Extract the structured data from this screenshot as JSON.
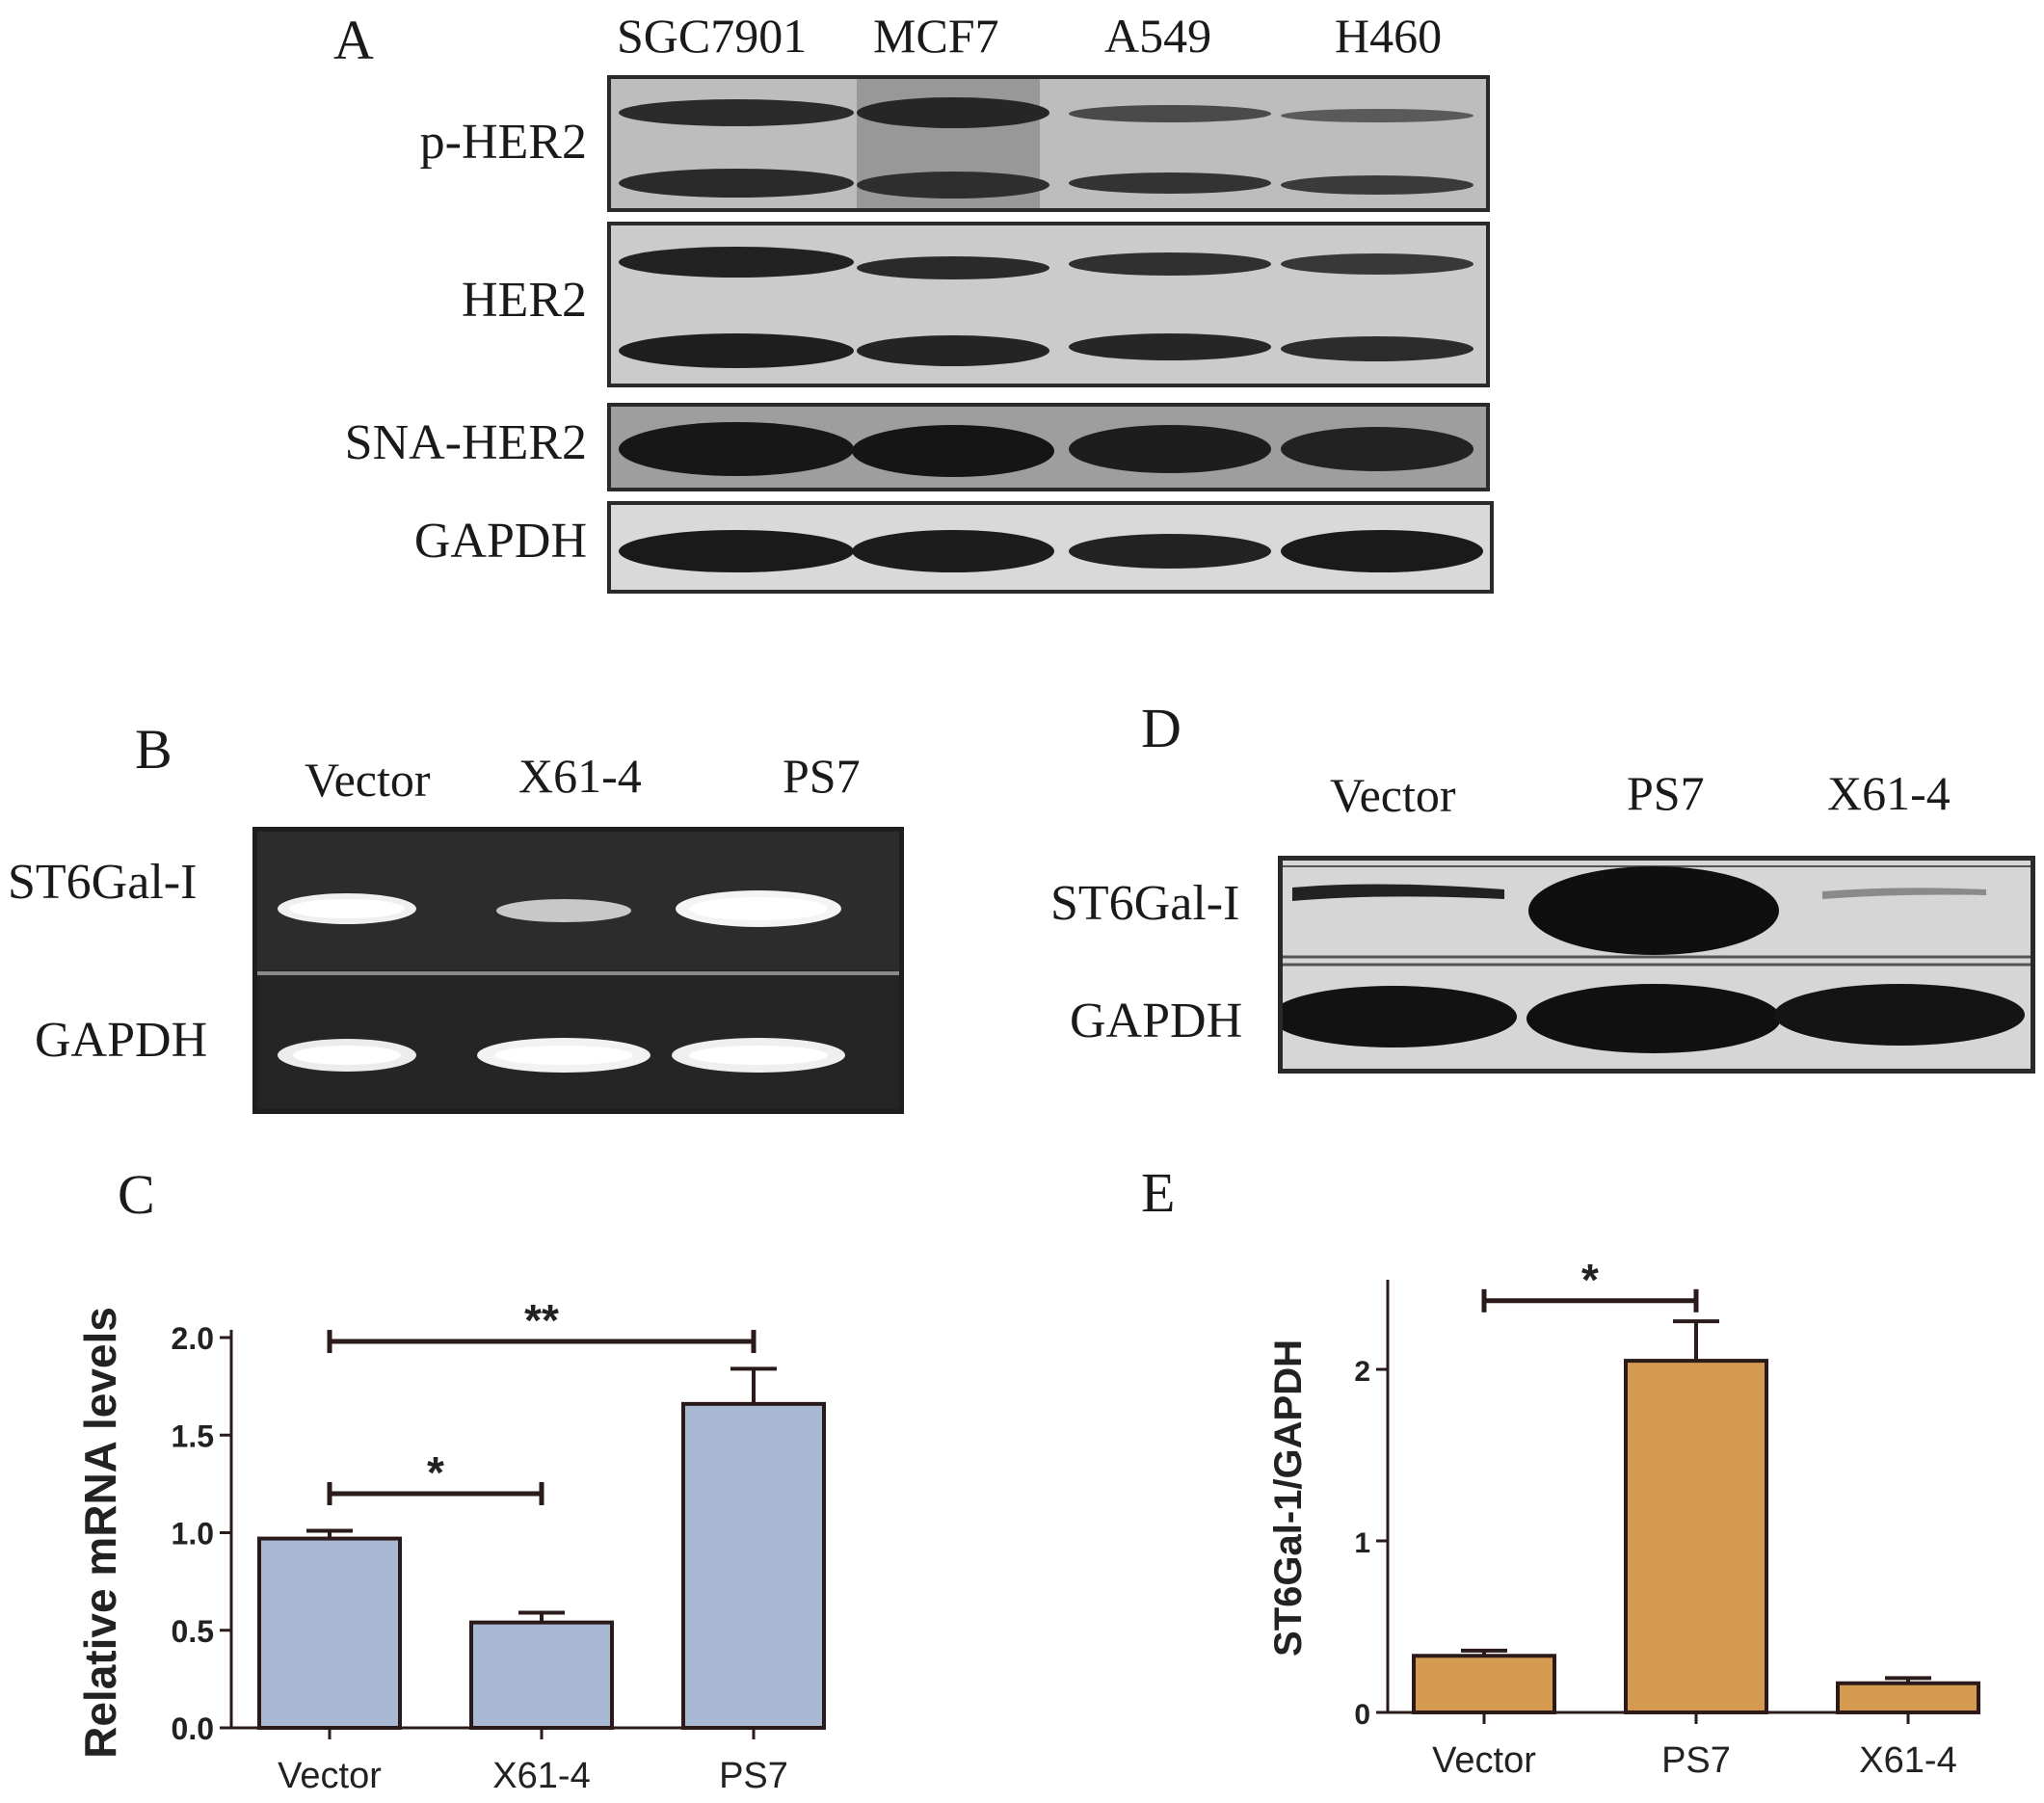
{
  "panel_a": {
    "letter": "A",
    "lanes": [
      "SGC7901",
      "MCF7",
      "A549",
      "H460"
    ],
    "rows": [
      "p-HER2",
      "HER2",
      "SNA-HER2",
      "GAPDH"
    ]
  },
  "panel_b": {
    "letter": "B",
    "lanes": [
      "Vector",
      "X61-4",
      "PS7"
    ],
    "rows": [
      "ST6Gal-I",
      "GAPDH"
    ]
  },
  "panel_c": {
    "letter": "C"
  },
  "panel_d": {
    "letter": "D",
    "lanes": [
      "Vector",
      "PS7",
      "X61-4"
    ],
    "rows": [
      "ST6Gal-I",
      "GAPDH"
    ]
  },
  "panel_e": {
    "letter": "E"
  },
  "colors": {
    "bar_c": "#a9b8d3",
    "bar_e": "#d49a4f",
    "outline": "#2a1a1a"
  },
  "chart_data": [
    {
      "type": "bar",
      "panel": "C",
      "categories": [
        "Vector",
        "X61-4",
        "PS7"
      ],
      "values": [
        0.97,
        0.54,
        1.66
      ],
      "errors": [
        0.04,
        0.05,
        0.18
      ],
      "ylabel": "Relative mRNA levels",
      "ylim": [
        0,
        2.0
      ],
      "yticks": [
        "0.0",
        "0.5",
        "1.0",
        "1.5",
        "2.0"
      ],
      "significance": [
        {
          "from": "Vector",
          "to": "X61-4",
          "label": "*"
        },
        {
          "from": "Vector",
          "to": "PS7",
          "label": "**"
        }
      ]
    },
    {
      "type": "bar",
      "panel": "E",
      "categories": [
        "Vector",
        "PS7",
        "X61-4"
      ],
      "values": [
        0.33,
        2.05,
        0.17
      ],
      "errors": [
        0.03,
        0.23,
        0.03
      ],
      "ylabel": "ST6Gal-1/GAPDH",
      "ylim": [
        0,
        2.5
      ],
      "yticks": [
        "0",
        "1",
        "2"
      ],
      "significance": [
        {
          "from": "Vector",
          "to": "PS7",
          "label": "*"
        }
      ]
    }
  ]
}
